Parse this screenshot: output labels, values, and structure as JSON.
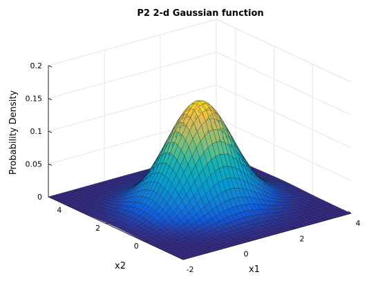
{
  "chart_data": {
    "type": "surface",
    "title": "P2  2-d Gaussian function",
    "xlabel": "x1",
    "ylabel": "x2",
    "zlabel": "Probability Density",
    "xlim": [
      -2,
      4
    ],
    "ylim": [
      -2,
      5
    ],
    "zlim": [
      0,
      0.2
    ],
    "x_ticks": [
      "-2",
      "0",
      "2",
      "4"
    ],
    "y_ticks": [
      "0",
      "2",
      "4"
    ],
    "z_ticks": [
      "0",
      "0.05",
      "0.1",
      "0.15",
      "0.2"
    ],
    "peak": {
      "x1": 1,
      "x2": 1.5,
      "density": 0.159
    },
    "sigma": {
      "x1": 1,
      "x2": 1
    },
    "grid": true,
    "colormap": "parula"
  }
}
